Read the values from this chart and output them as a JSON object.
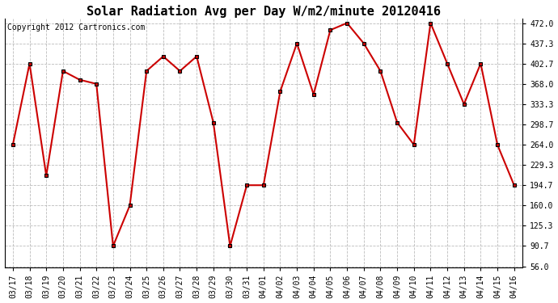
{
  "title": "Solar Radiation Avg per Day W/m2/minute 20120416",
  "copyright": "Copyright 2012 Cartronics.com",
  "labels": [
    "03/17",
    "03/18",
    "03/19",
    "03/20",
    "03/21",
    "03/22",
    "03/23",
    "03/24",
    "03/25",
    "03/26",
    "03/27",
    "03/28",
    "03/29",
    "03/30",
    "03/31",
    "04/01",
    "04/02",
    "04/03",
    "04/04",
    "04/05",
    "04/06",
    "04/07",
    "04/08",
    "04/09",
    "04/10",
    "04/11",
    "04/12",
    "04/13",
    "04/14",
    "04/15",
    "04/16"
  ],
  "values": [
    264.0,
    402.7,
    211.0,
    390.0,
    375.0,
    368.0,
    90.7,
    160.0,
    390.0,
    415.0,
    390.0,
    415.0,
    302.0,
    90.7,
    194.7,
    194.7,
    355.0,
    437.3,
    350.0,
    460.0,
    472.0,
    437.3,
    390.0,
    302.0,
    264.0,
    472.0,
    402.7,
    333.3,
    402.7,
    264.0,
    194.7
  ],
  "ylim_min": 56.0,
  "ylim_max": 472.0,
  "yticks": [
    56.0,
    90.7,
    125.3,
    160.0,
    194.7,
    229.3,
    264.0,
    298.7,
    333.3,
    368.0,
    402.7,
    437.3,
    472.0
  ],
  "line_color": "#cc0000",
  "marker": "s",
  "marker_size": 3,
  "bg_color": "#ffffff",
  "grid_color": "#bbbbbb",
  "title_fontsize": 11,
  "tick_fontsize": 7,
  "copyright_fontsize": 7
}
